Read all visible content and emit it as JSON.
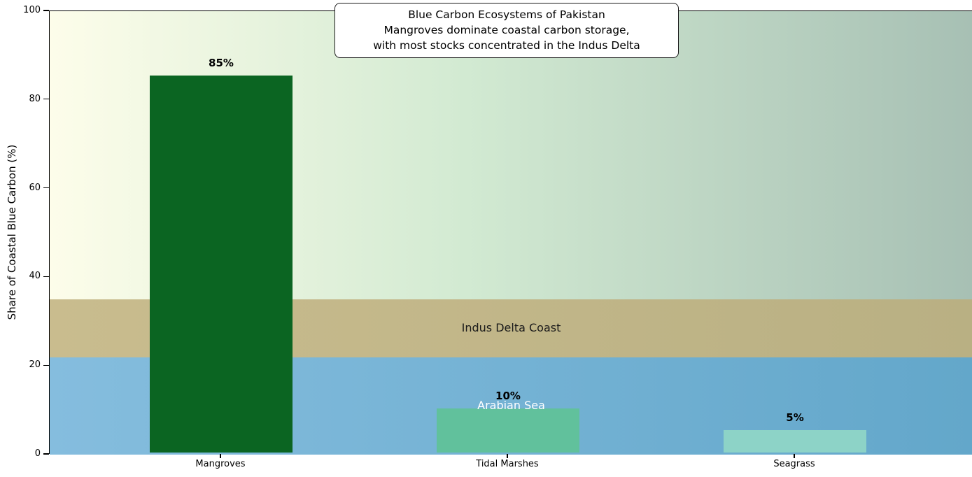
{
  "chart_data": {
    "type": "bar",
    "title_lines": [
      "Blue Carbon Ecosystems of Pakistan",
      "Mangroves dominate coastal carbon storage,",
      "with most stocks concentrated in the Indus Delta"
    ],
    "categories": [
      "Mangroves",
      "Tidal Marshes",
      "Seagrass"
    ],
    "values": [
      85,
      10,
      5
    ],
    "value_labels": [
      "85%",
      "10%",
      "5%"
    ],
    "bar_colors": [
      "#0b6522",
      "#61c19c",
      "#8dd3c7"
    ],
    "ylabel": "Share of Coastal Blue Carbon (%)",
    "ylim": [
      0,
      100
    ],
    "yticks": [
      0,
      20,
      40,
      60,
      80,
      100
    ],
    "ytick_labels": [
      "0",
      "20",
      "40",
      "60",
      "80",
      "100"
    ],
    "grid": false,
    "legend": "none",
    "plot_bg_gradient": [
      "#fdfdea",
      "#d2ead2",
      "#a7c0b4"
    ],
    "bands": [
      {
        "label": "Indus Delta Coast",
        "from": 22,
        "to": 35,
        "color_left": "#c9bc8e",
        "color_right": "#b9b083",
        "text_color": "#1a1a1a"
      },
      {
        "label": "Arabian Sea",
        "from": 0,
        "to": 22,
        "color_left": "#85bdde",
        "color_right": "#63a7ca",
        "text_color": "#ffffff"
      }
    ]
  }
}
